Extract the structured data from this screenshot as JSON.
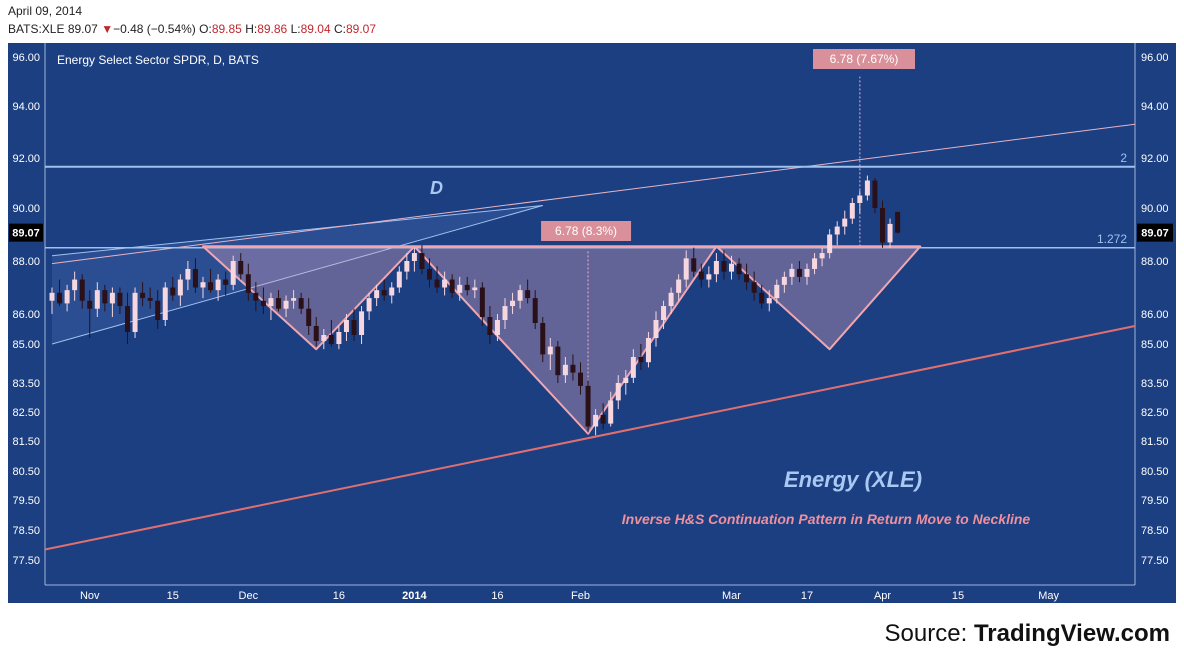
{
  "header": {
    "date": "April 09, 2014",
    "symbol": "BATS:XLE",
    "last": "89.07",
    "change": "−0.48 (−0.54%)",
    "open_label": "O:",
    "open": "89.85",
    "high_label": "H:",
    "high": "89.86",
    "low_label": "L:",
    "low": "89.04",
    "close_label": "C:",
    "close": "89.07",
    "down_glyph": "▼"
  },
  "source": {
    "prefix": "Source: ",
    "brand": "TradingView.com"
  },
  "colors": {
    "background": "#1c3f82",
    "candle_up": "#f6d6df",
    "candle_down": "#2a1018",
    "neckline": "#f2a6b0",
    "support": "#e0706f",
    "fib_line": "#9fc1ee",
    "label_box": "#d9909a",
    "annotation_title": "#a9c8f2",
    "annotation_sub": "#f0909c"
  },
  "chart_data": {
    "type": "candlestick",
    "title": "Energy Select Sector SPDR, D, BATS",
    "ylim": [
      77,
      96.2
    ],
    "y_ticks": [
      "96.00",
      "94.00",
      "92.00",
      "90.00",
      "88.00",
      "86.00",
      "85.00",
      "83.50",
      "82.50",
      "81.50",
      "80.50",
      "79.50",
      "78.50",
      "77.50"
    ],
    "x_ticks": [
      "Nov",
      "15",
      "Dec",
      "16",
      "2014",
      "16",
      "Feb",
      "Mar",
      "17",
      "Apr",
      "15",
      "May"
    ],
    "current_price_label": "89.07",
    "neckline_level": 88.5,
    "fib_level_2": 91.65,
    "fib_label_2": "2",
    "fib_label_1272": "1.272",
    "measure_box_left": "6.78 (8.3%)",
    "measure_box_right": "6.78 (7.67%)",
    "pattern_letter": "D",
    "annotation_title": "Energy (XLE)",
    "annotation_subtitle": "Inverse H&S Continuation Pattern in Return Move to Neckline",
    "candles": [
      {
        "o": 86.5,
        "h": 87.0,
        "l": 86.0,
        "c": 86.8
      },
      {
        "o": 86.8,
        "h": 87.3,
        "l": 86.3,
        "c": 86.4
      },
      {
        "o": 86.4,
        "h": 87.1,
        "l": 86.1,
        "c": 86.9
      },
      {
        "o": 86.9,
        "h": 87.6,
        "l": 86.5,
        "c": 87.3
      },
      {
        "o": 87.3,
        "h": 87.5,
        "l": 86.2,
        "c": 86.5
      },
      {
        "o": 86.5,
        "h": 86.9,
        "l": 85.2,
        "c": 86.2
      },
      {
        "o": 86.2,
        "h": 87.2,
        "l": 85.9,
        "c": 86.9
      },
      {
        "o": 86.9,
        "h": 87.1,
        "l": 86.1,
        "c": 86.4
      },
      {
        "o": 86.4,
        "h": 87.0,
        "l": 85.9,
        "c": 86.8
      },
      {
        "o": 86.8,
        "h": 87.0,
        "l": 86.0,
        "c": 86.3
      },
      {
        "o": 86.3,
        "h": 86.8,
        "l": 85.0,
        "c": 85.4
      },
      {
        "o": 85.4,
        "h": 87.0,
        "l": 85.2,
        "c": 86.8
      },
      {
        "o": 86.8,
        "h": 87.2,
        "l": 86.3,
        "c": 86.6
      },
      {
        "o": 86.6,
        "h": 87.0,
        "l": 86.2,
        "c": 86.5
      },
      {
        "o": 86.5,
        "h": 86.9,
        "l": 85.5,
        "c": 85.8
      },
      {
        "o": 85.8,
        "h": 87.2,
        "l": 85.6,
        "c": 87.0
      },
      {
        "o": 87.0,
        "h": 87.4,
        "l": 86.5,
        "c": 86.7
      },
      {
        "o": 86.7,
        "h": 87.5,
        "l": 86.3,
        "c": 87.3
      },
      {
        "o": 87.3,
        "h": 88.0,
        "l": 86.9,
        "c": 87.7
      },
      {
        "o": 87.7,
        "h": 88.1,
        "l": 86.8,
        "c": 87.0
      },
      {
        "o": 87.0,
        "h": 87.4,
        "l": 86.6,
        "c": 87.2
      },
      {
        "o": 87.2,
        "h": 87.7,
        "l": 86.8,
        "c": 86.9
      },
      {
        "o": 86.9,
        "h": 87.5,
        "l": 86.5,
        "c": 87.3
      },
      {
        "o": 87.3,
        "h": 87.6,
        "l": 86.7,
        "c": 87.1
      },
      {
        "o": 87.1,
        "h": 88.2,
        "l": 86.9,
        "c": 88.0
      },
      {
        "o": 88.0,
        "h": 88.3,
        "l": 87.3,
        "c": 87.5
      },
      {
        "o": 87.5,
        "h": 87.9,
        "l": 86.5,
        "c": 86.8
      },
      {
        "o": 86.8,
        "h": 87.2,
        "l": 86.1,
        "c": 86.5
      },
      {
        "o": 86.5,
        "h": 87.0,
        "l": 86.0,
        "c": 86.3
      },
      {
        "o": 86.3,
        "h": 86.8,
        "l": 85.8,
        "c": 86.6
      },
      {
        "o": 86.6,
        "h": 86.9,
        "l": 86.1,
        "c": 86.2
      },
      {
        "o": 86.2,
        "h": 86.7,
        "l": 85.9,
        "c": 86.5
      },
      {
        "o": 86.5,
        "h": 86.9,
        "l": 86.2,
        "c": 86.6
      },
      {
        "o": 86.6,
        "h": 86.8,
        "l": 86.0,
        "c": 86.2
      },
      {
        "o": 86.2,
        "h": 86.6,
        "l": 85.3,
        "c": 85.6
      },
      {
        "o": 85.6,
        "h": 85.9,
        "l": 84.9,
        "c": 85.1
      },
      {
        "o": 85.1,
        "h": 85.5,
        "l": 84.8,
        "c": 85.3
      },
      {
        "o": 85.3,
        "h": 85.8,
        "l": 84.9,
        "c": 85.0
      },
      {
        "o": 85.0,
        "h": 85.6,
        "l": 84.8,
        "c": 85.4
      },
      {
        "o": 85.4,
        "h": 86.0,
        "l": 85.1,
        "c": 85.8
      },
      {
        "o": 85.8,
        "h": 86.2,
        "l": 85.1,
        "c": 85.3
      },
      {
        "o": 85.3,
        "h": 86.3,
        "l": 85.0,
        "c": 86.1
      },
      {
        "o": 86.1,
        "h": 86.8,
        "l": 85.8,
        "c": 86.6
      },
      {
        "o": 86.6,
        "h": 87.1,
        "l": 86.3,
        "c": 86.9
      },
      {
        "o": 86.9,
        "h": 87.3,
        "l": 86.5,
        "c": 86.7
      },
      {
        "o": 86.7,
        "h": 87.2,
        "l": 86.4,
        "c": 87.0
      },
      {
        "o": 87.0,
        "h": 87.8,
        "l": 86.8,
        "c": 87.6
      },
      {
        "o": 87.6,
        "h": 88.3,
        "l": 87.3,
        "c": 88.0
      },
      {
        "o": 88.0,
        "h": 88.5,
        "l": 87.6,
        "c": 88.3
      },
      {
        "o": 88.3,
        "h": 88.6,
        "l": 87.5,
        "c": 87.7
      },
      {
        "o": 87.7,
        "h": 88.1,
        "l": 87.0,
        "c": 87.3
      },
      {
        "o": 87.3,
        "h": 87.8,
        "l": 86.8,
        "c": 87.0
      },
      {
        "o": 87.0,
        "h": 87.6,
        "l": 86.7,
        "c": 87.3
      },
      {
        "o": 87.3,
        "h": 87.5,
        "l": 86.6,
        "c": 86.8
      },
      {
        "o": 86.8,
        "h": 87.4,
        "l": 86.5,
        "c": 87.1
      },
      {
        "o": 87.1,
        "h": 87.4,
        "l": 86.7,
        "c": 86.9
      },
      {
        "o": 86.9,
        "h": 87.3,
        "l": 86.6,
        "c": 87.0
      },
      {
        "o": 87.0,
        "h": 87.2,
        "l": 85.6,
        "c": 85.9
      },
      {
        "o": 85.9,
        "h": 86.3,
        "l": 85.0,
        "c": 85.3
      },
      {
        "o": 85.3,
        "h": 86.0,
        "l": 85.1,
        "c": 85.8
      },
      {
        "o": 85.8,
        "h": 86.6,
        "l": 85.5,
        "c": 86.3
      },
      {
        "o": 86.3,
        "h": 86.8,
        "l": 86.0,
        "c": 86.5
      },
      {
        "o": 86.5,
        "h": 87.1,
        "l": 86.2,
        "c": 86.9
      },
      {
        "o": 86.9,
        "h": 87.3,
        "l": 86.4,
        "c": 86.6
      },
      {
        "o": 86.6,
        "h": 86.9,
        "l": 85.5,
        "c": 85.7
      },
      {
        "o": 85.7,
        "h": 85.9,
        "l": 84.3,
        "c": 84.6
      },
      {
        "o": 84.6,
        "h": 85.2,
        "l": 84.0,
        "c": 84.9
      },
      {
        "o": 84.9,
        "h": 85.1,
        "l": 83.5,
        "c": 83.8
      },
      {
        "o": 83.8,
        "h": 84.5,
        "l": 83.5,
        "c": 84.2
      },
      {
        "o": 84.2,
        "h": 84.6,
        "l": 83.6,
        "c": 83.9
      },
      {
        "o": 83.9,
        "h": 84.3,
        "l": 83.1,
        "c": 83.4
      },
      {
        "o": 83.4,
        "h": 83.6,
        "l": 81.8,
        "c": 82.0
      },
      {
        "o": 82.0,
        "h": 82.6,
        "l": 81.7,
        "c": 82.4
      },
      {
        "o": 82.4,
        "h": 82.8,
        "l": 81.9,
        "c": 82.1
      },
      {
        "o": 82.1,
        "h": 83.2,
        "l": 82.0,
        "c": 82.9
      },
      {
        "o": 82.9,
        "h": 83.8,
        "l": 82.6,
        "c": 83.5
      },
      {
        "o": 83.5,
        "h": 84.0,
        "l": 83.1,
        "c": 83.7
      },
      {
        "o": 83.7,
        "h": 84.8,
        "l": 83.5,
        "c": 84.5
      },
      {
        "o": 84.5,
        "h": 85.0,
        "l": 84.0,
        "c": 84.3
      },
      {
        "o": 84.3,
        "h": 85.4,
        "l": 84.1,
        "c": 85.2
      },
      {
        "o": 85.2,
        "h": 86.1,
        "l": 84.9,
        "c": 85.8
      },
      {
        "o": 85.8,
        "h": 86.5,
        "l": 85.5,
        "c": 86.3
      },
      {
        "o": 86.3,
        "h": 87.0,
        "l": 86.0,
        "c": 86.8
      },
      {
        "o": 86.8,
        "h": 87.5,
        "l": 86.5,
        "c": 87.3
      },
      {
        "o": 87.3,
        "h": 88.4,
        "l": 87.0,
        "c": 88.1
      },
      {
        "o": 88.1,
        "h": 88.5,
        "l": 87.4,
        "c": 87.6
      },
      {
        "o": 87.6,
        "h": 87.9,
        "l": 87.0,
        "c": 87.3
      },
      {
        "o": 87.3,
        "h": 87.8,
        "l": 87.0,
        "c": 87.5
      },
      {
        "o": 87.5,
        "h": 88.3,
        "l": 87.2,
        "c": 88.0
      },
      {
        "o": 88.0,
        "h": 88.4,
        "l": 87.3,
        "c": 87.6
      },
      {
        "o": 87.6,
        "h": 88.2,
        "l": 87.3,
        "c": 87.9
      },
      {
        "o": 87.9,
        "h": 88.1,
        "l": 87.3,
        "c": 87.5
      },
      {
        "o": 87.5,
        "h": 87.9,
        "l": 86.9,
        "c": 87.2
      },
      {
        "o": 87.2,
        "h": 87.6,
        "l": 86.5,
        "c": 86.8
      },
      {
        "o": 86.8,
        "h": 87.1,
        "l": 86.2,
        "c": 86.4
      },
      {
        "o": 86.4,
        "h": 86.9,
        "l": 86.1,
        "c": 86.6
      },
      {
        "o": 86.6,
        "h": 87.3,
        "l": 86.4,
        "c": 87.1
      },
      {
        "o": 87.1,
        "h": 87.6,
        "l": 86.8,
        "c": 87.4
      },
      {
        "o": 87.4,
        "h": 87.9,
        "l": 87.1,
        "c": 87.7
      },
      {
        "o": 87.7,
        "h": 88.0,
        "l": 87.2,
        "c": 87.4
      },
      {
        "o": 87.4,
        "h": 87.9,
        "l": 87.1,
        "c": 87.7
      },
      {
        "o": 87.7,
        "h": 88.3,
        "l": 87.5,
        "c": 88.1
      },
      {
        "o": 88.1,
        "h": 88.5,
        "l": 87.8,
        "c": 88.3
      },
      {
        "o": 88.3,
        "h": 89.2,
        "l": 88.1,
        "c": 89.0
      },
      {
        "o": 89.0,
        "h": 89.5,
        "l": 88.6,
        "c": 89.3
      },
      {
        "o": 89.3,
        "h": 89.9,
        "l": 89.0,
        "c": 89.6
      },
      {
        "o": 89.6,
        "h": 90.4,
        "l": 89.4,
        "c": 90.2
      },
      {
        "o": 90.2,
        "h": 90.7,
        "l": 89.8,
        "c": 90.5
      },
      {
        "o": 90.5,
        "h": 91.3,
        "l": 90.3,
        "c": 91.1
      },
      {
        "o": 91.1,
        "h": 91.2,
        "l": 89.8,
        "c": 90.0
      },
      {
        "o": 90.0,
        "h": 90.3,
        "l": 88.5,
        "c": 88.7
      },
      {
        "o": 88.7,
        "h": 89.6,
        "l": 88.5,
        "c": 89.4
      },
      {
        "o": 89.85,
        "h": 89.86,
        "l": 89.04,
        "c": 89.07
      }
    ]
  }
}
